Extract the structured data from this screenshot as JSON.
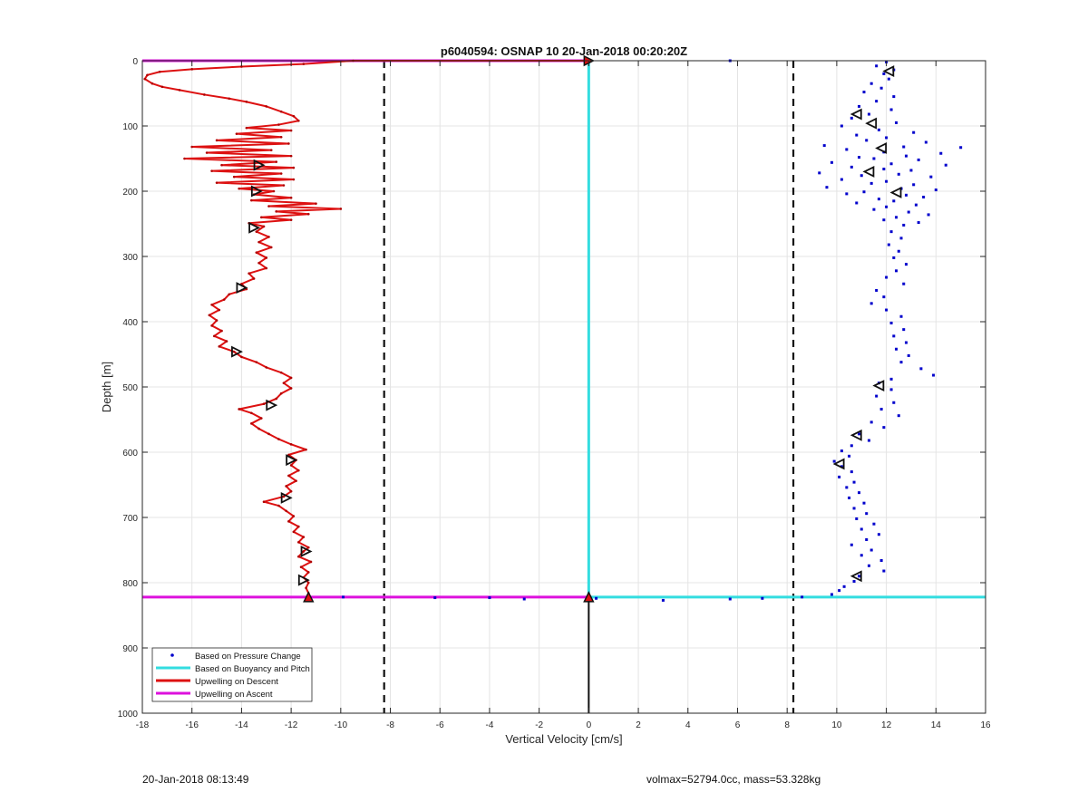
{
  "chart_data": {
    "type": "scatter",
    "title": "p6040594: OSNAP 10 20-Jan-2018 00:20:20Z",
    "xlabel": "Vertical Velocity [cm/s]",
    "ylabel": "Depth [m]",
    "xlim": [
      -18,
      16
    ],
    "ylim": [
      0,
      1000
    ],
    "y_reversed": true,
    "grid": true,
    "x_ticks": [
      -18,
      -16,
      -14,
      -12,
      -10,
      -8,
      -6,
      -4,
      -2,
      0,
      2,
      4,
      6,
      8,
      10,
      12,
      14,
      16
    ],
    "y_ticks": [
      0,
      100,
      200,
      300,
      400,
      500,
      600,
      700,
      800,
      900,
      1000
    ],
    "legend": {
      "placement": "bottom-left",
      "entries": [
        {
          "label": "Based on Pressure Change",
          "color": "#0000cc",
          "style": "dot"
        },
        {
          "label": "Based on Buoyancy and Pitch",
          "color": "#33dde0",
          "style": "line"
        },
        {
          "label": "Upwelling on Descent",
          "color": "#dd1111",
          "style": "line"
        },
        {
          "label": "Upwelling on Ascent",
          "color": "#dd11dd",
          "style": "line"
        }
      ]
    },
    "reference_lines": {
      "vertical_dashed_x": [
        -8.25,
        8.25
      ]
    },
    "descent_profile": [
      [
        -9.5,
        0
      ],
      [
        -11.5,
        5
      ],
      [
        -14.0,
        9
      ],
      [
        -16.0,
        13
      ],
      [
        -17.3,
        17
      ],
      [
        -17.8,
        22
      ],
      [
        -17.9,
        28
      ],
      [
        -17.6,
        35
      ],
      [
        -17.2,
        40
      ],
      [
        -16.5,
        45
      ],
      [
        -15.5,
        52
      ],
      [
        -14.5,
        58
      ],
      [
        -13.8,
        63
      ],
      [
        -13.0,
        70
      ],
      [
        -12.4,
        78
      ],
      [
        -11.9,
        85
      ],
      [
        -11.7,
        92
      ],
      [
        -12.5,
        98
      ],
      [
        -13.8,
        103
      ],
      [
        -12.0,
        107
      ],
      [
        -14.2,
        112
      ],
      [
        -12.4,
        117
      ],
      [
        -15.0,
        122
      ],
      [
        -12.1,
        127
      ],
      [
        -16.0,
        132
      ],
      [
        -12.8,
        137
      ],
      [
        -15.4,
        141
      ],
      [
        -12.0,
        146
      ],
      [
        -16.3,
        150
      ],
      [
        -12.6,
        155
      ],
      [
        -14.8,
        160
      ],
      [
        -11.9,
        164
      ],
      [
        -15.2,
        169
      ],
      [
        -12.4,
        173
      ],
      [
        -14.3,
        178
      ],
      [
        -11.9,
        182
      ],
      [
        -15.0,
        187
      ],
      [
        -12.3,
        191
      ],
      [
        -14.1,
        196
      ],
      [
        -12.7,
        200
      ],
      [
        -13.5,
        205
      ],
      [
        -12.0,
        210
      ],
      [
        -13.6,
        214
      ],
      [
        -11.0,
        219
      ],
      [
        -12.9,
        223
      ],
      [
        -10.0,
        227
      ],
      [
        -12.6,
        231
      ],
      [
        -11.3,
        235
      ],
      [
        -13.2,
        240
      ],
      [
        -12.0,
        244
      ],
      [
        -13.7,
        249
      ],
      [
        -13.1,
        254
      ],
      [
        -13.4,
        262
      ],
      [
        -12.9,
        270
      ],
      [
        -13.3,
        278
      ],
      [
        -12.8,
        286
      ],
      [
        -13.4,
        294
      ],
      [
        -13.0,
        302
      ],
      [
        -13.3,
        310
      ],
      [
        -13.0,
        318
      ],
      [
        -13.7,
        326
      ],
      [
        -13.5,
        334
      ],
      [
        -14.0,
        342
      ],
      [
        -13.8,
        350
      ],
      [
        -14.5,
        358
      ],
      [
        -14.7,
        366
      ],
      [
        -15.2,
        374
      ],
      [
        -14.9,
        382
      ],
      [
        -15.3,
        390
      ],
      [
        -15.0,
        398
      ],
      [
        -15.2,
        406
      ],
      [
        -14.8,
        414
      ],
      [
        -15.1,
        422
      ],
      [
        -14.6,
        430
      ],
      [
        -14.9,
        438
      ],
      [
        -14.3,
        446
      ],
      [
        -14.0,
        454
      ],
      [
        -13.4,
        462
      ],
      [
        -13.0,
        470
      ],
      [
        -12.4,
        478
      ],
      [
        -12.0,
        486
      ],
      [
        -12.3,
        494
      ],
      [
        -12.0,
        502
      ],
      [
        -12.4,
        510
      ],
      [
        -12.6,
        518
      ],
      [
        -13.1,
        526
      ],
      [
        -14.1,
        534
      ],
      [
        -13.6,
        540
      ],
      [
        -13.2,
        548
      ],
      [
        -13.6,
        556
      ],
      [
        -13.3,
        564
      ],
      [
        -12.9,
        572
      ],
      [
        -12.5,
        580
      ],
      [
        -12.0,
        588
      ],
      [
        -11.4,
        596
      ],
      [
        -12.1,
        604
      ],
      [
        -11.8,
        612
      ],
      [
        -12.0,
        620
      ],
      [
        -11.7,
        628
      ],
      [
        -12.1,
        636
      ],
      [
        -11.8,
        644
      ],
      [
        -12.2,
        652
      ],
      [
        -12.0,
        660
      ],
      [
        -12.3,
        668
      ],
      [
        -13.1,
        676
      ],
      [
        -12.5,
        682
      ],
      [
        -12.2,
        690
      ],
      [
        -11.9,
        698
      ],
      [
        -12.1,
        706
      ],
      [
        -11.7,
        714
      ],
      [
        -11.9,
        722
      ],
      [
        -11.5,
        730
      ],
      [
        -11.7,
        738
      ],
      [
        -11.3,
        746
      ],
      [
        -11.5,
        752
      ],
      [
        -11.7,
        760
      ],
      [
        -11.2,
        768
      ],
      [
        -11.6,
        776
      ],
      [
        -11.3,
        784
      ],
      [
        -11.5,
        792
      ],
      [
        -11.3,
        800
      ],
      [
        -11.4,
        808
      ],
      [
        -11.3,
        816
      ],
      [
        -11.3,
        822
      ]
    ],
    "descent_top_segment": [
      [
        -9.5,
        0
      ],
      [
        0,
        0
      ]
    ],
    "ascent_segments": [
      [
        [
          -18,
          0
        ],
        [
          0,
          0
        ]
      ],
      [
        [
          -18,
          822
        ],
        [
          0,
          822
        ]
      ]
    ],
    "buoyancy_pitch": [
      [
        0,
        0
      ],
      [
        0,
        822
      ],
      [
        16,
        822
      ]
    ],
    "pressure_change_points": [
      [
        5.7,
        0
      ],
      [
        12.0,
        2
      ],
      [
        11.6,
        8
      ],
      [
        12.3,
        14
      ],
      [
        11.9,
        20
      ],
      [
        12.1,
        28
      ],
      [
        11.4,
        35
      ],
      [
        11.8,
        42
      ],
      [
        11.1,
        48
      ],
      [
        12.3,
        55
      ],
      [
        11.6,
        62
      ],
      [
        10.9,
        70
      ],
      [
        12.2,
        75
      ],
      [
        11.3,
        82
      ],
      [
        10.6,
        88
      ],
      [
        12.4,
        95
      ],
      [
        10.2,
        100
      ],
      [
        11.7,
        106
      ],
      [
        13.1,
        110
      ],
      [
        10.8,
        114
      ],
      [
        12.0,
        118
      ],
      [
        11.2,
        122
      ],
      [
        13.6,
        125
      ],
      [
        9.5,
        130
      ],
      [
        12.7,
        132
      ],
      [
        15.0,
        133
      ],
      [
        10.4,
        136
      ],
      [
        11.9,
        140
      ],
      [
        14.2,
        142
      ],
      [
        12.8,
        146
      ],
      [
        10.9,
        148
      ],
      [
        11.5,
        150
      ],
      [
        13.3,
        152
      ],
      [
        9.8,
        156
      ],
      [
        12.2,
        158
      ],
      [
        14.4,
        160
      ],
      [
        10.6,
        163
      ],
      [
        11.9,
        166
      ],
      [
        13.0,
        168
      ],
      [
        9.3,
        172
      ],
      [
        12.5,
        174
      ],
      [
        11.0,
        176
      ],
      [
        13.8,
        178
      ],
      [
        10.2,
        182
      ],
      [
        12.0,
        185
      ],
      [
        11.4,
        188
      ],
      [
        13.1,
        190
      ],
      [
        9.6,
        194
      ],
      [
        12.6,
        196
      ],
      [
        14.0,
        198
      ],
      [
        11.1,
        201
      ],
      [
        10.4,
        204
      ],
      [
        12.8,
        206
      ],
      [
        13.5,
        209
      ],
      [
        11.7,
        212
      ],
      [
        12.3,
        215
      ],
      [
        10.8,
        218
      ],
      [
        13.2,
        221
      ],
      [
        12.0,
        224
      ],
      [
        11.5,
        228
      ],
      [
        12.9,
        232
      ],
      [
        13.7,
        236
      ],
      [
        12.4,
        240
      ],
      [
        11.9,
        244
      ],
      [
        13.3,
        248
      ],
      [
        12.7,
        252
      ],
      [
        12.2,
        262
      ],
      [
        12.6,
        272
      ],
      [
        12.1,
        282
      ],
      [
        12.5,
        292
      ],
      [
        12.3,
        302
      ],
      [
        12.8,
        312
      ],
      [
        12.4,
        322
      ],
      [
        12.0,
        332
      ],
      [
        12.7,
        342
      ],
      [
        11.6,
        352
      ],
      [
        11.9,
        362
      ],
      [
        11.4,
        372
      ],
      [
        12.0,
        382
      ],
      [
        12.6,
        392
      ],
      [
        12.2,
        402
      ],
      [
        12.7,
        412
      ],
      [
        12.3,
        422
      ],
      [
        12.8,
        432
      ],
      [
        12.4,
        442
      ],
      [
        12.9,
        452
      ],
      [
        12.6,
        462
      ],
      [
        13.4,
        472
      ],
      [
        13.9,
        482
      ],
      [
        12.2,
        488
      ],
      [
        11.7,
        494
      ],
      [
        12.2,
        504
      ],
      [
        11.6,
        514
      ],
      [
        12.3,
        524
      ],
      [
        11.8,
        534
      ],
      [
        12.5,
        544
      ],
      [
        11.4,
        554
      ],
      [
        11.9,
        562
      ],
      [
        10.9,
        572
      ],
      [
        11.3,
        582
      ],
      [
        10.6,
        590
      ],
      [
        10.2,
        598
      ],
      [
        10.5,
        606
      ],
      [
        9.9,
        614
      ],
      [
        10.2,
        622
      ],
      [
        10.6,
        630
      ],
      [
        10.1,
        638
      ],
      [
        10.7,
        646
      ],
      [
        10.4,
        654
      ],
      [
        10.9,
        662
      ],
      [
        10.5,
        670
      ],
      [
        11.1,
        678
      ],
      [
        10.7,
        686
      ],
      [
        11.2,
        694
      ],
      [
        10.8,
        702
      ],
      [
        11.5,
        710
      ],
      [
        11.0,
        718
      ],
      [
        11.7,
        726
      ],
      [
        11.2,
        734
      ],
      [
        10.6,
        742
      ],
      [
        11.4,
        750
      ],
      [
        11.0,
        758
      ],
      [
        11.8,
        766
      ],
      [
        11.3,
        774
      ],
      [
        11.9,
        782
      ],
      [
        10.9,
        790
      ],
      [
        10.7,
        798
      ],
      [
        10.3,
        806
      ],
      [
        10.1,
        812
      ],
      [
        9.8,
        818
      ],
      [
        -6.2,
        823
      ],
      [
        -4.0,
        823
      ],
      [
        -2.6,
        825
      ],
      [
        0.3,
        824
      ],
      [
        3.0,
        827
      ],
      [
        5.7,
        825
      ],
      [
        7.0,
        824
      ],
      [
        8.6,
        822
      ],
      [
        -9.9,
        822
      ]
    ],
    "descent_markers": [
      [
        -13.3,
        160
      ],
      [
        -13.4,
        200
      ],
      [
        -13.5,
        256
      ],
      [
        -14.0,
        348
      ],
      [
        -14.2,
        446
      ],
      [
        -12.8,
        528
      ],
      [
        -12.0,
        612
      ],
      [
        -12.2,
        670
      ],
      [
        -11.4,
        752
      ],
      [
        -11.5,
        796
      ]
    ],
    "ascent_markers": [
      [
        12.1,
        16
      ],
      [
        10.8,
        82
      ],
      [
        11.4,
        96
      ],
      [
        11.8,
        134
      ],
      [
        11.3,
        170
      ],
      [
        12.4,
        202
      ],
      [
        11.7,
        498
      ],
      [
        10.8,
        574
      ],
      [
        10.1,
        618
      ],
      [
        10.8,
        790
      ]
    ],
    "endpoint_markers": [
      [
        0,
        0
      ],
      [
        -11.3,
        822
      ],
      [
        0,
        822
      ]
    ],
    "zero_line_below_turn": [
      [
        0,
        822
      ],
      [
        0,
        1000
      ]
    ]
  },
  "footer": {
    "left_timestamp": "20-Jan-2018 08:13:49",
    "right_info": "volmax=52794.0cc, mass=53.328kg"
  }
}
